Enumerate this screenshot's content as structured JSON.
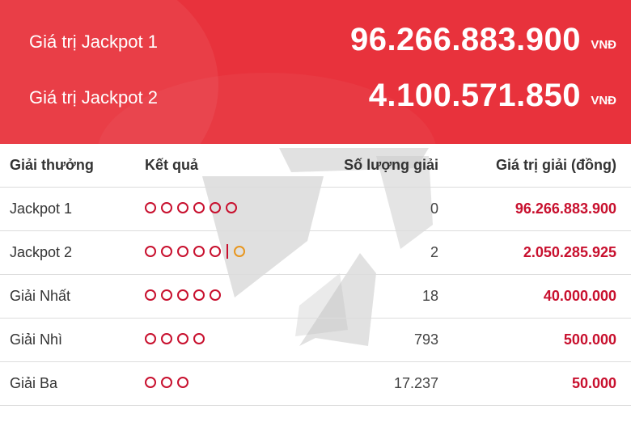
{
  "jackpots": [
    {
      "label": "Giá trị Jackpot 1",
      "value": "96.266.883.900",
      "unit": "VNĐ"
    },
    {
      "label": "Giá trị Jackpot 2",
      "value": "4.100.571.850",
      "unit": "VNĐ"
    }
  ],
  "table": {
    "headers": [
      "Giải thưởng",
      "Kết quả",
      "Số lượng giải",
      "Giá trị giải (đồng)"
    ],
    "rows": [
      {
        "prize": "Jackpot 1",
        "match_count": 6,
        "bonus": false,
        "quantity": "0",
        "value": "96.266.883.900"
      },
      {
        "prize": "Jackpot 2",
        "match_count": 5,
        "bonus": true,
        "quantity": "2",
        "value": "2.050.285.925"
      },
      {
        "prize": "Giải Nhất",
        "match_count": 5,
        "bonus": false,
        "quantity": "18",
        "value": "40.000.000"
      },
      {
        "prize": "Giải Nhì",
        "match_count": 4,
        "bonus": false,
        "quantity": "793",
        "value": "500.000"
      },
      {
        "prize": "Giải Ba",
        "match_count": 3,
        "bonus": false,
        "quantity": "17.237",
        "value": "50.000"
      }
    ]
  },
  "colors": {
    "banner": "#e8323c",
    "prize_value": "#c8102e",
    "ball": "#c8102e",
    "bonus_ball": "#e8961e"
  }
}
